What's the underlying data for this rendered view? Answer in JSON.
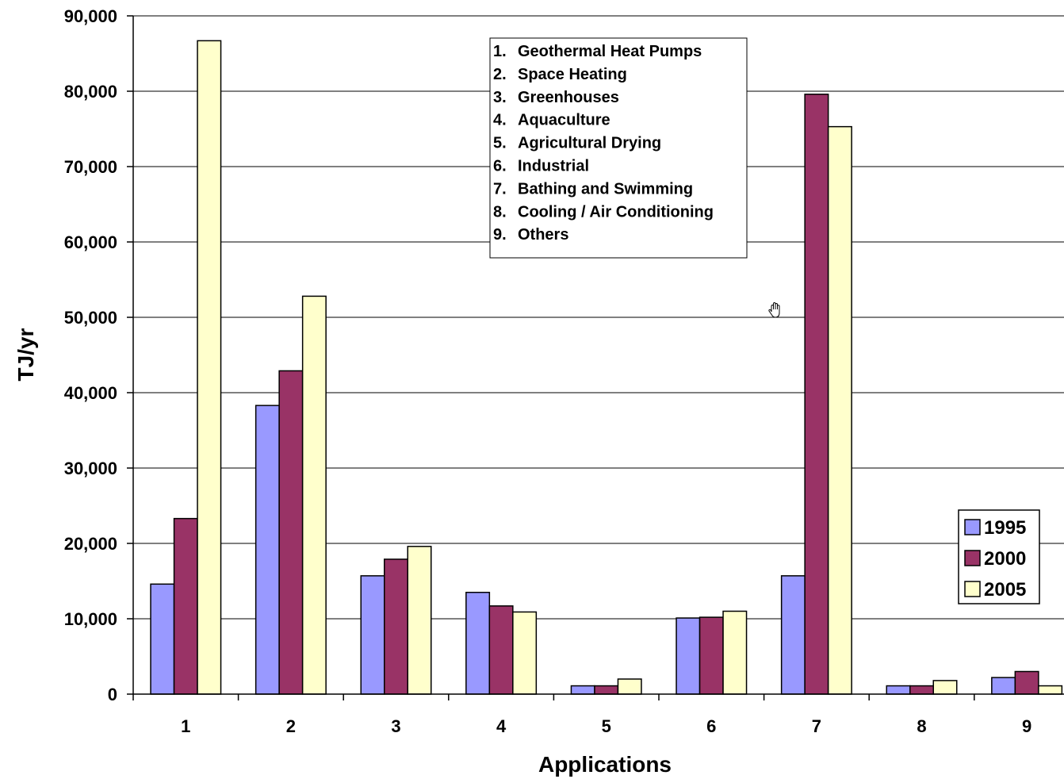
{
  "chart_data": {
    "type": "bar",
    "title": "",
    "xlabel": "Applications",
    "ylabel": "TJ/yr",
    "ylim": [
      0,
      90000
    ],
    "yticks": [
      "0",
      "10,000",
      "20,000",
      "30,000",
      "40,000",
      "50,000",
      "60,000",
      "70,000",
      "80,000",
      "90,000"
    ],
    "categories": [
      "1",
      "2",
      "3",
      "4",
      "5",
      "6",
      "7",
      "8",
      "9"
    ],
    "grid": true,
    "legend_position": "right",
    "series": [
      {
        "name": "1995",
        "color": "#9999ff",
        "values": [
          14600,
          38300,
          15700,
          13500,
          1100,
          10100,
          15700,
          1100,
          2200
        ]
      },
      {
        "name": "2000",
        "color": "#993366",
        "values": [
          23300,
          42900,
          17900,
          11700,
          1100,
          10200,
          79600,
          1100,
          3000
        ]
      },
      {
        "name": "2005",
        "color": "#ffffcc",
        "values": [
          86700,
          52800,
          19600,
          10900,
          2000,
          11000,
          75300,
          1800,
          1100
        ]
      }
    ],
    "applications_box": [
      "1.  Geothermal Heat Pumps",
      "2.  Space Heating",
      "3.  Greenhouses",
      "4.  Aquaculture",
      "5.  Agricultural Drying",
      "6.  Industrial",
      "7.  Bathing and Swimming",
      "8.  Cooling / Air Conditioning",
      "9.  Others"
    ]
  },
  "cursor": {
    "icon": "hand-cursor-icon"
  }
}
